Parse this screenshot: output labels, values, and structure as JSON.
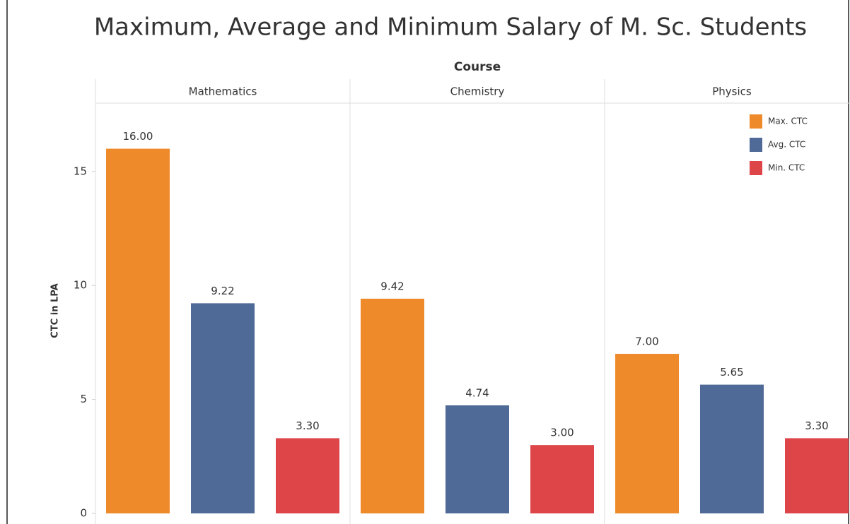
{
  "chart_data": {
    "type": "bar",
    "title": "Maximum, Average and Minimum Salary of M. Sc. Students",
    "x_label": "Course",
    "y_label": "CTC in LPA",
    "categories": [
      "Mathematics",
      "Chemistry",
      "Physics"
    ],
    "series": [
      {
        "name": "Max. CTC",
        "color": "#ee8a2a",
        "values": [
          16,
          9.42,
          7
        ],
        "value_labels": [
          "16.00",
          "9.42",
          "7.00"
        ]
      },
      {
        "name": "Avg. CTC",
        "color": "#4f6a96",
        "values": [
          9.22,
          4.74,
          5.65
        ],
        "value_labels": [
          "9.22",
          "4.74",
          "5.65"
        ]
      },
      {
        "name": "Min. CTC",
        "color": "#dd4549",
        "values": [
          3.3,
          3,
          3.3
        ],
        "value_labels": [
          "3.30",
          "3.00",
          "3.30"
        ]
      }
    ],
    "ylim": [
      0,
      18
    ],
    "yticks": [
      0,
      5,
      10,
      15
    ],
    "legend": "top-right"
  }
}
